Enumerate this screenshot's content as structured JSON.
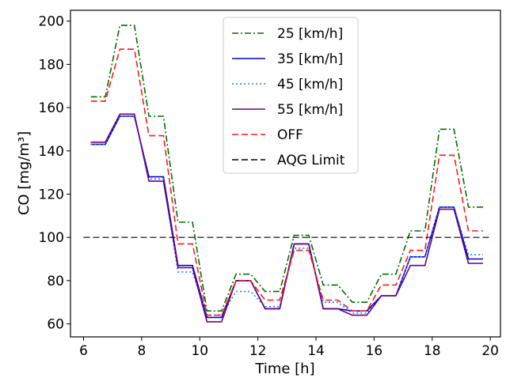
{
  "chart_data": {
    "type": "line",
    "xlabel": "Time [h]",
    "ylabel": "CO [mg/m³]",
    "xlim": [
      5.55,
      20.35
    ],
    "ylim": [
      54,
      205
    ],
    "xticks": [
      6,
      8,
      10,
      12,
      14,
      16,
      18,
      20
    ],
    "yticks": [
      60,
      80,
      100,
      120,
      140,
      160,
      180,
      200
    ],
    "legend_position": "top-center",
    "grid": false,
    "x": [
      6.25,
      6.75,
      7.25,
      7.75,
      8.25,
      8.75,
      9.25,
      9.75,
      10.25,
      10.75,
      11.25,
      11.75,
      12.25,
      12.75,
      13.25,
      13.75,
      14.25,
      14.75,
      15.25,
      15.75,
      16.25,
      16.75,
      17.25,
      17.75,
      18.25,
      18.75,
      19.25,
      19.75
    ],
    "series": [
      {
        "name": "25 [km/h]",
        "color": "#007000",
        "style": "dashdot",
        "values": [
          165,
          165,
          198,
          198,
          156,
          156,
          107,
          107,
          66,
          66,
          83,
          83,
          75,
          75,
          101,
          101,
          78,
          78,
          70,
          70,
          83,
          83,
          103,
          103,
          150,
          150,
          114,
          114
        ]
      },
      {
        "name": "35 [km/h]",
        "color": "#0000dd",
        "style": "solid",
        "values": [
          143,
          143,
          156,
          156,
          128,
          128,
          87,
          87,
          63,
          63,
          80,
          80,
          67,
          67,
          97,
          97,
          67,
          67,
          66,
          66,
          73,
          73,
          91,
          91,
          114,
          114,
          90,
          90
        ]
      },
      {
        "name": "45 [km/h]",
        "color": "#1e7fe6",
        "style": "dotted",
        "values": [
          143,
          143,
          156,
          156,
          127,
          127,
          84,
          84,
          64,
          64,
          75,
          75,
          68,
          68,
          95,
          95,
          70,
          70,
          65,
          65,
          73,
          73,
          91,
          91,
          114,
          114,
          92,
          92
        ]
      },
      {
        "name": "55 [km/h]",
        "color": "#6a0080",
        "style": "solid",
        "values": [
          144,
          144,
          157,
          157,
          126,
          126,
          86,
          86,
          61,
          61,
          80,
          80,
          67,
          67,
          97,
          97,
          67,
          67,
          64,
          64,
          73,
          73,
          87,
          87,
          113,
          113,
          88,
          88
        ]
      },
      {
        "name": "OFF",
        "color": "#ff1a1a",
        "style": "dashed",
        "values": [
          163,
          163,
          187,
          187,
          147,
          147,
          97,
          97,
          64,
          64,
          80,
          80,
          71,
          71,
          94,
          94,
          71,
          71,
          66,
          66,
          78,
          78,
          94,
          94,
          138,
          138,
          103,
          103
        ]
      }
    ],
    "reference_line": {
      "name": "AQG Limit",
      "color": "#000000",
      "style": "dashed",
      "y": 100,
      "x_range": [
        6,
        20
      ]
    }
  }
}
